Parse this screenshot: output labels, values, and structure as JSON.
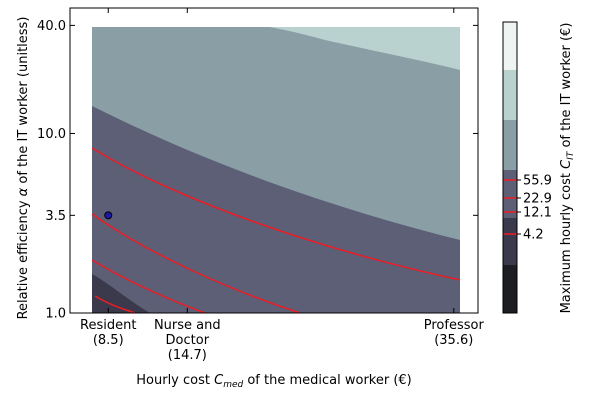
{
  "chart_data": {
    "type": "contour",
    "xlabel": "Hourly cost C_med of the medical worker (€)",
    "xlabel_parts": {
      "pre": "Hourly cost ",
      "sym": "C",
      "sub": "med",
      "post": " of the medical worker (€)"
    },
    "ylabel": "Relative efficiency α of the IT worker (unitless)",
    "ylabel_parts": {
      "pre": "Relative efficiency ",
      "sym": "α",
      "post": " of the IT worker (unitless)"
    },
    "colorbar_label": "Maximum hourly cost C_IT of the IT worker (€)",
    "colorbar_label_parts": {
      "pre": "Maximum hourly cost ",
      "sym": "C",
      "sub": "IT",
      "post": " of the IT worker (€)"
    },
    "x_ticks": [
      {
        "value": 8.5,
        "lines": [
          "Resident",
          "(8.5)"
        ]
      },
      {
        "value": 14.7,
        "lines": [
          "Nurse and",
          "Doctor",
          "(14.7)"
        ]
      },
      {
        "value": 35.6,
        "lines": [
          "Professor",
          "(35.6)"
        ]
      }
    ],
    "xlim": [
      5.5,
      37.5
    ],
    "y_scale": "log",
    "y_ticks": [
      {
        "value": 1.0,
        "label": "1.0"
      },
      {
        "value": 3.5,
        "label": "3.5"
      },
      {
        "value": 10.0,
        "label": "10.0"
      },
      {
        "value": 40.0,
        "label": "40.0"
      }
    ],
    "ylim": [
      1.0,
      50.0
    ],
    "filled_levels_colors": [
      "#1d1d24",
      "#3a3a4c",
      "#5c5f75",
      "#8a9ea6",
      "#b9d1cf",
      "#eef4f2"
    ],
    "contour_lines": [
      {
        "label": "55.9",
        "color": "#ee1c24"
      },
      {
        "label": "22.9",
        "color": "#ee1c24"
      },
      {
        "label": "12.1",
        "color": "#ee1c24"
      },
      {
        "label": "4.2",
        "color": "#ee1c24"
      }
    ],
    "marker": {
      "x": 8.5,
      "y": 3.5,
      "color": "#1a1aa6"
    }
  }
}
